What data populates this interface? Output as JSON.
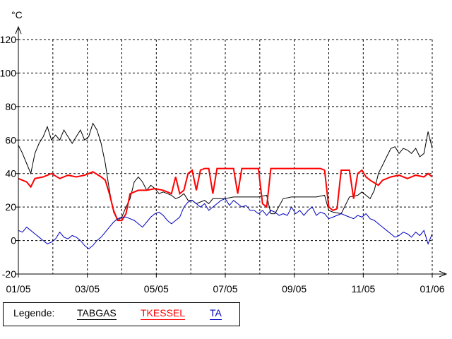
{
  "chart_data": {
    "type": "line",
    "ylabel": "°C",
    "ylim": [
      -20,
      120
    ],
    "yticks": [
      -20,
      0,
      20,
      40,
      60,
      80,
      100,
      120
    ],
    "x_tick_labels": [
      "01/05",
      "03/05",
      "05/05",
      "07/05",
      "09/05",
      "11/05",
      "01/06"
    ],
    "xlim": [
      0,
      1
    ],
    "grid": true,
    "legend_title": "Legende:",
    "series": [
      {
        "name": "TABGAS",
        "color": "#000000",
        "points": [
          [
            0.0,
            57
          ],
          [
            0.01,
            52
          ],
          [
            0.02,
            46
          ],
          [
            0.03,
            40
          ],
          [
            0.04,
            52
          ],
          [
            0.05,
            58
          ],
          [
            0.06,
            62
          ],
          [
            0.07,
            68
          ],
          [
            0.08,
            60
          ],
          [
            0.09,
            63
          ],
          [
            0.1,
            60
          ],
          [
            0.11,
            66
          ],
          [
            0.12,
            62
          ],
          [
            0.13,
            58
          ],
          [
            0.14,
            62
          ],
          [
            0.15,
            66
          ],
          [
            0.16,
            60
          ],
          [
            0.17,
            62
          ],
          [
            0.18,
            70
          ],
          [
            0.19,
            66
          ],
          [
            0.2,
            58
          ],
          [
            0.21,
            46
          ],
          [
            0.22,
            30
          ],
          [
            0.23,
            17
          ],
          [
            0.24,
            12
          ],
          [
            0.25,
            14
          ],
          [
            0.26,
            20
          ],
          [
            0.27,
            25
          ],
          [
            0.28,
            35
          ],
          [
            0.29,
            38
          ],
          [
            0.3,
            35
          ],
          [
            0.31,
            30
          ],
          [
            0.32,
            33
          ],
          [
            0.33,
            31
          ],
          [
            0.34,
            28
          ],
          [
            0.35,
            29
          ],
          [
            0.36,
            28
          ],
          [
            0.37,
            27
          ],
          [
            0.38,
            25
          ],
          [
            0.39,
            26
          ],
          [
            0.4,
            28
          ],
          [
            0.41,
            24
          ],
          [
            0.42,
            24
          ],
          [
            0.43,
            22
          ],
          [
            0.44,
            23
          ],
          [
            0.45,
            24
          ],
          [
            0.46,
            22
          ],
          [
            0.47,
            25
          ],
          [
            0.48,
            25
          ],
          [
            0.5,
            25
          ],
          [
            0.52,
            26
          ],
          [
            0.54,
            26
          ],
          [
            0.56,
            26
          ],
          [
            0.58,
            26
          ],
          [
            0.6,
            27
          ],
          [
            0.61,
            16
          ],
          [
            0.62,
            16
          ],
          [
            0.64,
            25
          ],
          [
            0.66,
            26
          ],
          [
            0.68,
            26
          ],
          [
            0.7,
            26
          ],
          [
            0.72,
            26
          ],
          [
            0.74,
            27
          ],
          [
            0.75,
            18
          ],
          [
            0.76,
            17
          ],
          [
            0.78,
            16
          ],
          [
            0.8,
            26
          ],
          [
            0.82,
            27
          ],
          [
            0.83,
            29
          ],
          [
            0.84,
            27
          ],
          [
            0.85,
            25
          ],
          [
            0.86,
            30
          ],
          [
            0.87,
            40
          ],
          [
            0.88,
            45
          ],
          [
            0.89,
            50
          ],
          [
            0.9,
            55
          ],
          [
            0.91,
            56
          ],
          [
            0.92,
            52
          ],
          [
            0.93,
            55
          ],
          [
            0.94,
            54
          ],
          [
            0.95,
            52
          ],
          [
            0.96,
            55
          ],
          [
            0.97,
            50
          ],
          [
            0.98,
            52
          ],
          [
            0.99,
            65
          ],
          [
            1.0,
            55
          ]
        ]
      },
      {
        "name": "TKESSEL",
        "color": "#ff0000",
        "points": [
          [
            0.0,
            37
          ],
          [
            0.02,
            35
          ],
          [
            0.03,
            32
          ],
          [
            0.04,
            37
          ],
          [
            0.06,
            38
          ],
          [
            0.08,
            40
          ],
          [
            0.1,
            37
          ],
          [
            0.12,
            39
          ],
          [
            0.14,
            38
          ],
          [
            0.16,
            39
          ],
          [
            0.18,
            41
          ],
          [
            0.2,
            38
          ],
          [
            0.21,
            36
          ],
          [
            0.22,
            28
          ],
          [
            0.23,
            18
          ],
          [
            0.24,
            12
          ],
          [
            0.25,
            12
          ],
          [
            0.26,
            16
          ],
          [
            0.27,
            28
          ],
          [
            0.29,
            30
          ],
          [
            0.31,
            30
          ],
          [
            0.33,
            31
          ],
          [
            0.35,
            30
          ],
          [
            0.37,
            28
          ],
          [
            0.38,
            38
          ],
          [
            0.39,
            28
          ],
          [
            0.4,
            30
          ],
          [
            0.41,
            40
          ],
          [
            0.42,
            42
          ],
          [
            0.43,
            30
          ],
          [
            0.44,
            42
          ],
          [
            0.45,
            43
          ],
          [
            0.46,
            43
          ],
          [
            0.47,
            28
          ],
          [
            0.48,
            43
          ],
          [
            0.5,
            43
          ],
          [
            0.52,
            43
          ],
          [
            0.53,
            28
          ],
          [
            0.54,
            43
          ],
          [
            0.56,
            43
          ],
          [
            0.58,
            43
          ],
          [
            0.59,
            22
          ],
          [
            0.6,
            20
          ],
          [
            0.61,
            43
          ],
          [
            0.63,
            43
          ],
          [
            0.65,
            43
          ],
          [
            0.67,
            43
          ],
          [
            0.69,
            43
          ],
          [
            0.71,
            43
          ],
          [
            0.73,
            43
          ],
          [
            0.74,
            42
          ],
          [
            0.75,
            20
          ],
          [
            0.76,
            18
          ],
          [
            0.77,
            19
          ],
          [
            0.78,
            42
          ],
          [
            0.79,
            42
          ],
          [
            0.8,
            42
          ],
          [
            0.81,
            25
          ],
          [
            0.82,
            40
          ],
          [
            0.83,
            42
          ],
          [
            0.84,
            38
          ],
          [
            0.85,
            36
          ],
          [
            0.87,
            33
          ],
          [
            0.88,
            36
          ],
          [
            0.9,
            38
          ],
          [
            0.92,
            39
          ],
          [
            0.94,
            37
          ],
          [
            0.96,
            39
          ],
          [
            0.98,
            38
          ],
          [
            0.99,
            40
          ],
          [
            1.0,
            38
          ]
        ]
      },
      {
        "name": "TA",
        "color": "#0000c0",
        "points": [
          [
            0.0,
            6
          ],
          [
            0.01,
            5
          ],
          [
            0.02,
            8
          ],
          [
            0.03,
            6
          ],
          [
            0.04,
            4
          ],
          [
            0.05,
            2
          ],
          [
            0.06,
            0
          ],
          [
            0.07,
            -2
          ],
          [
            0.08,
            -1
          ],
          [
            0.09,
            1
          ],
          [
            0.1,
            5
          ],
          [
            0.11,
            2
          ],
          [
            0.12,
            1
          ],
          [
            0.13,
            3
          ],
          [
            0.14,
            2
          ],
          [
            0.15,
            0
          ],
          [
            0.16,
            -3
          ],
          [
            0.17,
            -5
          ],
          [
            0.18,
            -3
          ],
          [
            0.19,
            0
          ],
          [
            0.2,
            2
          ],
          [
            0.21,
            5
          ],
          [
            0.22,
            8
          ],
          [
            0.23,
            11
          ],
          [
            0.24,
            13
          ],
          [
            0.25,
            14
          ],
          [
            0.26,
            14
          ],
          [
            0.27,
            13
          ],
          [
            0.28,
            12
          ],
          [
            0.29,
            10
          ],
          [
            0.3,
            8
          ],
          [
            0.31,
            11
          ],
          [
            0.32,
            14
          ],
          [
            0.33,
            16
          ],
          [
            0.34,
            17
          ],
          [
            0.35,
            15
          ],
          [
            0.36,
            12
          ],
          [
            0.37,
            10
          ],
          [
            0.38,
            12
          ],
          [
            0.39,
            14
          ],
          [
            0.4,
            20
          ],
          [
            0.41,
            23
          ],
          [
            0.42,
            24
          ],
          [
            0.43,
            22
          ],
          [
            0.44,
            20
          ],
          [
            0.45,
            22
          ],
          [
            0.46,
            18
          ],
          [
            0.47,
            20
          ],
          [
            0.48,
            22
          ],
          [
            0.49,
            24
          ],
          [
            0.5,
            25
          ],
          [
            0.51,
            21
          ],
          [
            0.52,
            24
          ],
          [
            0.53,
            22
          ],
          [
            0.54,
            20
          ],
          [
            0.55,
            21
          ],
          [
            0.56,
            18
          ],
          [
            0.57,
            18
          ],
          [
            0.58,
            16
          ],
          [
            0.59,
            18
          ],
          [
            0.6,
            15
          ],
          [
            0.61,
            18
          ],
          [
            0.62,
            17
          ],
          [
            0.63,
            15
          ],
          [
            0.64,
            16
          ],
          [
            0.65,
            15
          ],
          [
            0.66,
            20
          ],
          [
            0.67,
            16
          ],
          [
            0.68,
            18
          ],
          [
            0.69,
            15
          ],
          [
            0.7,
            18
          ],
          [
            0.71,
            20
          ],
          [
            0.72,
            15
          ],
          [
            0.73,
            17
          ],
          [
            0.74,
            16
          ],
          [
            0.75,
            13
          ],
          [
            0.76,
            14
          ],
          [
            0.77,
            15
          ],
          [
            0.78,
            16
          ],
          [
            0.79,
            15
          ],
          [
            0.8,
            14
          ],
          [
            0.81,
            13
          ],
          [
            0.82,
            15
          ],
          [
            0.83,
            14
          ],
          [
            0.84,
            16
          ],
          [
            0.85,
            13
          ],
          [
            0.86,
            12
          ],
          [
            0.87,
            10
          ],
          [
            0.88,
            8
          ],
          [
            0.89,
            6
          ],
          [
            0.9,
            4
          ],
          [
            0.91,
            2
          ],
          [
            0.92,
            3
          ],
          [
            0.93,
            5
          ],
          [
            0.94,
            4
          ],
          [
            0.95,
            2
          ],
          [
            0.96,
            5
          ],
          [
            0.97,
            3
          ],
          [
            0.98,
            6
          ],
          [
            0.99,
            -2
          ],
          [
            1.0,
            4
          ]
        ]
      }
    ]
  }
}
